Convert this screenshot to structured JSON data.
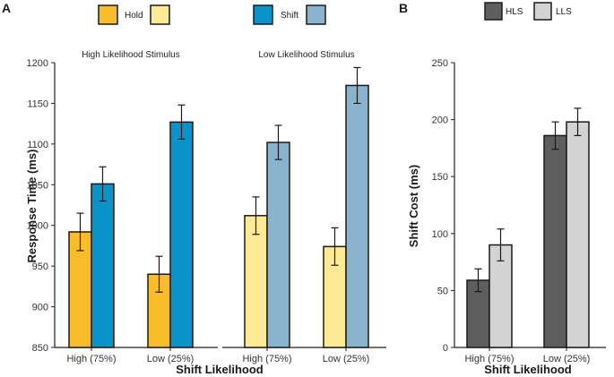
{
  "chart_data": [
    {
      "panel_label": "A",
      "type": "bar",
      "ylabel": "Response Time (ms)",
      "xlabel": "Shift Likelihood",
      "ylim": [
        850,
        1200
      ],
      "yticks": [
        850,
        900,
        950,
        1000,
        1050,
        1100,
        1150,
        1200
      ],
      "categories": [
        "High (75%)",
        "Low (25%)"
      ],
      "legend": {
        "placement": "top",
        "groups": [
          {
            "label": "Hold",
            "colors": [
              "#F9BC2A",
              "#FCEB94"
            ]
          },
          {
            "label": "Shift",
            "colors": [
              "#0A93C9",
              "#8AB4CE"
            ]
          }
        ]
      },
      "facets": [
        {
          "title": "High Likelihood Stimulus",
          "series": [
            {
              "color": "#F9BC2A",
              "values": [
                992,
                940
              ],
              "errors": [
                23,
                22
              ]
            },
            {
              "color": "#0A93C9",
              "values": [
                1051,
                1127
              ],
              "errors": [
                21,
                21
              ]
            }
          ]
        },
        {
          "title": "Low Likelihood Stimulus",
          "series": [
            {
              "color": "#FCEB94",
              "values": [
                1012,
                974
              ],
              "errors": [
                23,
                23
              ]
            },
            {
              "color": "#8AB4CE",
              "values": [
                1102,
                1172
              ],
              "errors": [
                21,
                22
              ]
            }
          ]
        }
      ]
    },
    {
      "panel_label": "B",
      "type": "bar",
      "ylabel": "Shift Cost (ms)",
      "xlabel": "Shift Likelihood",
      "ylim": [
        0,
        250
      ],
      "yticks": [
        0,
        50,
        100,
        150,
        200,
        250
      ],
      "categories": [
        "High (75%)",
        "Low (25%)"
      ],
      "legend": {
        "placement": "top",
        "entries": [
          {
            "label": "HLS",
            "color": "#5E5E5E"
          },
          {
            "label": "LLS",
            "color": "#D3D3D3"
          }
        ]
      },
      "series": [
        {
          "name": "HLS",
          "color": "#5E5E5E",
          "values": [
            59,
            186
          ],
          "errors": [
            10,
            12
          ]
        },
        {
          "name": "LLS",
          "color": "#D3D3D3",
          "values": [
            90,
            198
          ],
          "errors": [
            14,
            12
          ]
        }
      ]
    }
  ]
}
